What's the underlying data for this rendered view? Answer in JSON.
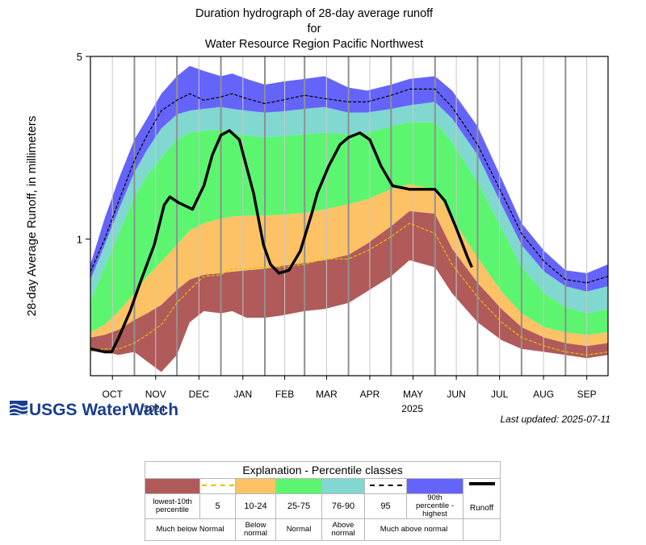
{
  "chart_data": {
    "type": "area",
    "title": "Duration hydrograph of 28-day average runoff",
    "title_line2": "for",
    "title_line3": "Water Resource Region Pacific Northwest",
    "ylabel": "28-day Average Runoff, in millimeters",
    "yscale": "log",
    "ylim": [
      0.3,
      5
    ],
    "ytick_labels": [
      "1",
      "5"
    ],
    "ytick_values": [
      1,
      5
    ],
    "xlim": [
      0,
      365
    ],
    "months": [
      "OCT",
      "NOV",
      "DEC",
      "JAN",
      "FEB",
      "MAR",
      "APR",
      "MAY",
      "JUN",
      "JUL",
      "AUG",
      "SEP"
    ],
    "month_starts": [
      0,
      31,
      61,
      92,
      123,
      151,
      182,
      212,
      243,
      273,
      304,
      335
    ],
    "year_labels": [
      {
        "text": "2024",
        "day": 45
      },
      {
        "text": "2025",
        "day": 227
      }
    ],
    "x_days": [
      0,
      10,
      20,
      31,
      40,
      50,
      61,
      70,
      80,
      92,
      100,
      110,
      123,
      135,
      151,
      165,
      182,
      195,
      212,
      225,
      243,
      255,
      273,
      290,
      304,
      320,
      335,
      350,
      365
    ],
    "bands": [
      {
        "name": "lowest-10th",
        "color": "#b05a5a",
        "lower": [
          0.38,
          0.37,
          0.36,
          0.37,
          0.34,
          0.31,
          0.36,
          0.48,
          0.53,
          0.52,
          0.53,
          0.5,
          0.5,
          0.51,
          0.53,
          0.54,
          0.57,
          0.63,
          0.72,
          0.83,
          0.78,
          0.62,
          0.48,
          0.41,
          0.38,
          0.37,
          0.36,
          0.35,
          0.36
        ],
        "upper": [
          0.42,
          0.43,
          0.45,
          0.49,
          0.52,
          0.56,
          0.64,
          0.7,
          0.73,
          0.74,
          0.75,
          0.76,
          0.77,
          0.79,
          0.81,
          0.83,
          0.87,
          0.96,
          1.12,
          1.28,
          1.25,
          0.92,
          0.68,
          0.54,
          0.46,
          0.42,
          0.4,
          0.39,
          0.4
        ]
      },
      {
        "name": "10-24",
        "color": "#fcc265",
        "lower": [
          0.42,
          0.43,
          0.45,
          0.49,
          0.52,
          0.56,
          0.64,
          0.7,
          0.73,
          0.74,
          0.75,
          0.76,
          0.77,
          0.79,
          0.81,
          0.83,
          0.87,
          0.96,
          1.12,
          1.28,
          1.25,
          0.92,
          0.68,
          0.54,
          0.46,
          0.42,
          0.4,
          0.39,
          0.4
        ],
        "upper": [
          0.44,
          0.47,
          0.53,
          0.62,
          0.72,
          0.82,
          0.95,
          1.08,
          1.15,
          1.2,
          1.22,
          1.23,
          1.23,
          1.24,
          1.26,
          1.3,
          1.36,
          1.42,
          1.55,
          1.62,
          1.55,
          1.2,
          0.85,
          0.63,
          0.52,
          0.46,
          0.44,
          0.43,
          0.44
        ]
      },
      {
        "name": "25-75",
        "color": "#5cf570",
        "lower": [
          0.44,
          0.47,
          0.53,
          0.62,
          0.72,
          0.82,
          0.95,
          1.08,
          1.15,
          1.2,
          1.22,
          1.23,
          1.23,
          1.24,
          1.26,
          1.3,
          1.36,
          1.42,
          1.55,
          1.62,
          1.55,
          1.2,
          0.85,
          0.63,
          0.52,
          0.46,
          0.44,
          0.43,
          0.44
        ],
        "upper": [
          0.58,
          0.78,
          1.05,
          1.45,
          1.75,
          2.05,
          2.4,
          2.55,
          2.6,
          2.62,
          2.55,
          2.5,
          2.45,
          2.48,
          2.52,
          2.55,
          2.52,
          2.55,
          2.7,
          2.8,
          2.8,
          2.35,
          1.65,
          1.1,
          0.78,
          0.62,
          0.55,
          0.52,
          0.54
        ]
      },
      {
        "name": "76-90",
        "color": "#80d8d0",
        "lower": [
          0.58,
          0.78,
          1.05,
          1.45,
          1.75,
          2.05,
          2.4,
          2.55,
          2.6,
          2.62,
          2.55,
          2.5,
          2.45,
          2.48,
          2.52,
          2.55,
          2.52,
          2.55,
          2.7,
          2.8,
          2.8,
          2.35,
          1.65,
          1.1,
          0.78,
          0.62,
          0.55,
          0.52,
          0.54
        ],
        "upper": [
          0.7,
          0.95,
          1.3,
          1.8,
          2.2,
          2.65,
          3.0,
          3.1,
          3.15,
          3.2,
          3.15,
          3.1,
          3.05,
          3.08,
          3.15,
          3.2,
          3.05,
          3.05,
          3.15,
          3.25,
          3.35,
          2.9,
          2.1,
          1.35,
          0.95,
          0.75,
          0.66,
          0.63,
          0.66
        ]
      },
      {
        "name": "90th-highest",
        "color": "#6464fa",
        "lower": [
          0.7,
          0.95,
          1.3,
          1.8,
          2.2,
          2.65,
          3.0,
          3.1,
          3.15,
          3.2,
          3.15,
          3.1,
          3.05,
          3.08,
          3.15,
          3.2,
          3.05,
          3.05,
          3.15,
          3.25,
          3.35,
          2.9,
          2.1,
          1.35,
          0.95,
          0.75,
          0.66,
          0.63,
          0.66
        ],
        "upper": [
          0.8,
          1.2,
          1.7,
          2.4,
          2.9,
          3.6,
          4.2,
          4.6,
          4.4,
          4.2,
          4.3,
          4.1,
          3.9,
          4.0,
          4.1,
          4.2,
          3.8,
          3.7,
          3.9,
          4.1,
          4.2,
          3.7,
          2.7,
          1.7,
          1.15,
          0.9,
          0.76,
          0.74,
          0.8
        ]
      }
    ],
    "series": [
      {
        "name": "5",
        "style": "dashed",
        "color": "#e0c000",
        "values": [
          0.37,
          0.38,
          0.38,
          0.4,
          0.43,
          0.47,
          0.57,
          0.64,
          0.72,
          0.73,
          0.77,
          0.77,
          0.78,
          0.78,
          0.8,
          0.84,
          0.84,
          0.9,
          1.02,
          1.15,
          1.05,
          0.8,
          0.6,
          0.48,
          0.42,
          0.39,
          0.37,
          0.36,
          0.37
        ]
      },
      {
        "name": "95",
        "style": "dashed",
        "color": "#000000",
        "values": [
          0.75,
          1.0,
          1.4,
          2.0,
          2.5,
          3.1,
          3.4,
          3.6,
          3.4,
          3.5,
          3.6,
          3.45,
          3.3,
          3.4,
          3.55,
          3.45,
          3.35,
          3.35,
          3.55,
          3.75,
          3.75,
          3.2,
          2.3,
          1.5,
          1.05,
          0.82,
          0.7,
          0.68,
          0.72
        ]
      },
      {
        "name": "Runoff",
        "style": "solid",
        "color": "#000000",
        "x": [
          0,
          10,
          15,
          20,
          28,
          35,
          45,
          52,
          56,
          62,
          72,
          80,
          86,
          92,
          98,
          105,
          115,
          122,
          127,
          133,
          140,
          148,
          156,
          160,
          168,
          176,
          182,
          190,
          197,
          205,
          213,
          225,
          235,
          243,
          250,
          258,
          266,
          269
        ],
        "values": [
          0.38,
          0.37,
          0.37,
          0.42,
          0.53,
          0.68,
          0.95,
          1.35,
          1.45,
          1.38,
          1.3,
          1.6,
          2.1,
          2.5,
          2.6,
          2.4,
          1.5,
          0.95,
          0.8,
          0.74,
          0.76,
          0.9,
          1.25,
          1.5,
          1.9,
          2.3,
          2.45,
          2.55,
          2.4,
          1.9,
          1.6,
          1.55,
          1.55,
          1.55,
          1.4,
          1.1,
          0.85,
          0.78
        ]
      }
    ],
    "legend_position": "bottom"
  },
  "branding": {
    "logo_text": "USGS WaterWatch",
    "last_updated": "Last updated: 2025-07-11"
  },
  "legend": {
    "title": "Explanation - Percentile classes",
    "columns": [
      {
        "label": "lowest-10th percentile",
        "color": "#b05a5a",
        "type": "fill"
      },
      {
        "label": "5",
        "color": "#e0c000",
        "type": "dashed"
      },
      {
        "label": "10-24",
        "color": "#fcc265",
        "type": "fill"
      },
      {
        "label": "25-75",
        "color": "#5cf570",
        "type": "fill"
      },
      {
        "label": "76-90",
        "color": "#80d8d0",
        "type": "fill"
      },
      {
        "label": "95",
        "color": "#000000",
        "type": "dashed"
      },
      {
        "label": "90th percentile -highest",
        "color": "#6464fa",
        "type": "fill"
      },
      {
        "label": "Runoff",
        "color": "#000000",
        "type": "solid"
      }
    ],
    "groups": [
      "Much below Normal",
      "Below normal",
      "Normal",
      "Above normal",
      "Much above normal"
    ]
  }
}
